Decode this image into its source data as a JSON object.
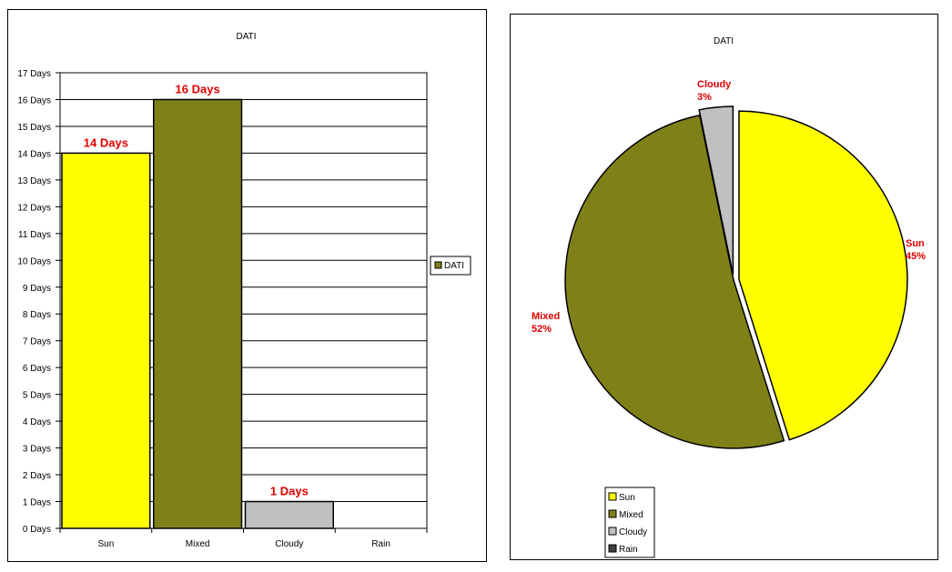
{
  "chart_data": [
    {
      "type": "bar",
      "title": "DATI",
      "categories": [
        "Sun",
        "Mixed",
        "Cloudy",
        "Rain"
      ],
      "series": [
        {
          "name": "DATI",
          "values": [
            14,
            16,
            1,
            0
          ]
        }
      ],
      "data_labels": [
        "14 Days",
        "16 Days",
        "1 Days",
        ""
      ],
      "colors": [
        "#ffff00",
        "#808019",
        "#c0c0c0",
        "#404040"
      ],
      "ylim": [
        0,
        17
      ],
      "yticks": [
        "0 Days",
        "1 Days",
        "2 Days",
        "3 Days",
        "4 Days",
        "5 Days",
        "6 Days",
        "7 Days",
        "8 Days",
        "9 Days",
        "10 Days",
        "11 Days",
        "12 Days",
        "13 Days",
        "14 Days",
        "15 Days",
        "16 Days",
        "17 Days"
      ],
      "grid": true,
      "legend": [
        "DATI"
      ],
      "legend_position": "right"
    },
    {
      "type": "pie",
      "title": "DATI",
      "categories": [
        "Sun",
        "Mixed",
        "Cloudy",
        "Rain"
      ],
      "values": [
        14,
        16,
        1,
        0
      ],
      "data_labels": [
        {
          "name": "Sun",
          "pct": "45%"
        },
        {
          "name": "Mixed",
          "pct": "52%"
        },
        {
          "name": "Cloudy",
          "pct": "3%"
        }
      ],
      "colors": [
        "#ffff00",
        "#808019",
        "#c0c0c0",
        "#404040"
      ],
      "legend": [
        "Sun",
        "Mixed",
        "Cloudy",
        "Rain"
      ],
      "legend_position": "bottom-left"
    }
  ]
}
